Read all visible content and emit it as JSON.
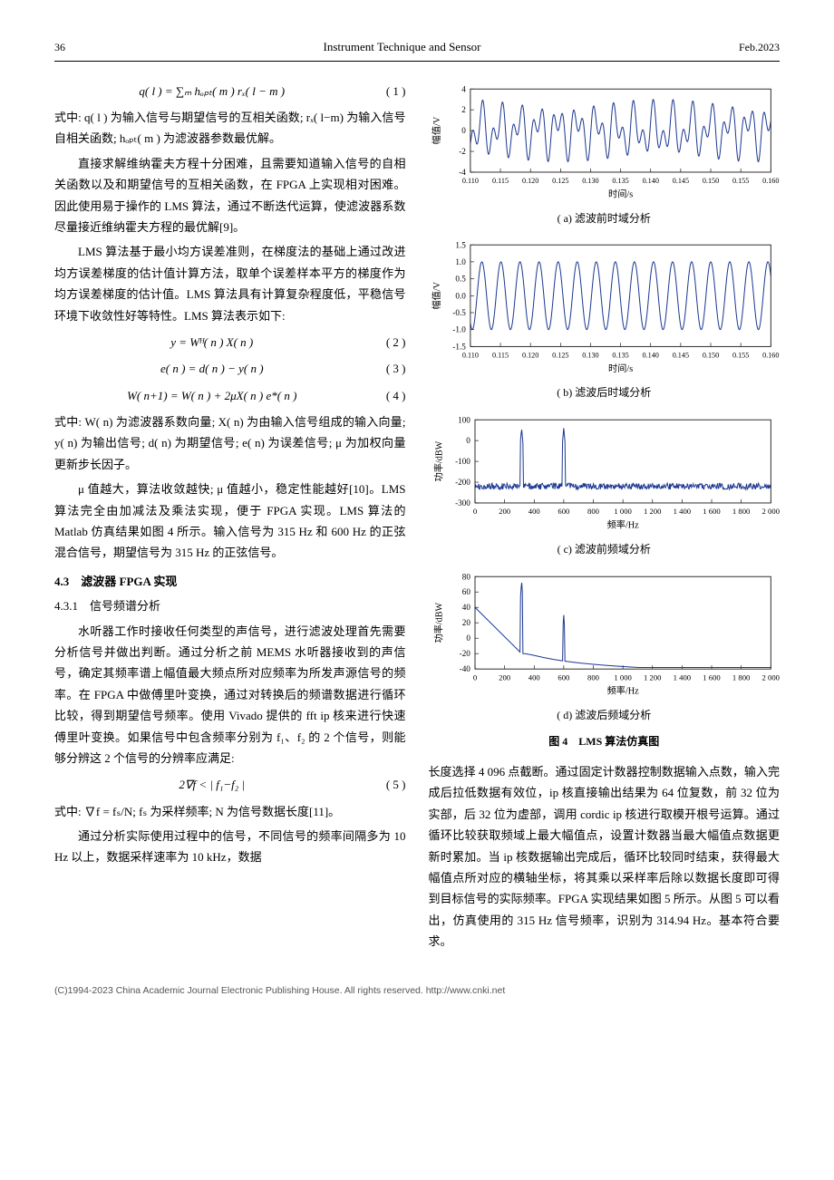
{
  "header": {
    "page": "36",
    "journal": "Instrument Technique and Sensor",
    "date": "Feb.2023"
  },
  "equations": {
    "eq1": "q( l ) = ∑ₘ hₒₚₜ( m ) rₓ( l − m )",
    "eq1_num": "( 1 )",
    "eq2": "y = Wᴴ( n ) X( n )",
    "eq2_num": "( 2 )",
    "eq3": "e( n ) = d( n ) − y( n )",
    "eq3_num": "( 3 )",
    "eq4": "W( n+1) = W( n ) + 2μX( n ) e*( n )",
    "eq4_num": "( 4 )",
    "eq5": "2∇f < | f₁−f₂ |",
    "eq5_num": "( 5 )"
  },
  "text": {
    "p1": "式中: q( l ) 为输入信号与期望信号的互相关函数; rₓ( l−m) 为输入信号自相关函数; hₒₚₜ( m ) 为滤波器参数最优解。",
    "p2": "直接求解维纳霍夫方程十分困难，且需要知道输入信号的自相关函数以及和期望信号的互相关函数，在 FPGA 上实现相对困难。因此使用易于操作的 LMS 算法，通过不断迭代运算，使滤波器系数尽量接近维纳霍夫方程的最优解[9]。",
    "p3": "LMS 算法基于最小均方误差准则，在梯度法的基础上通过改进均方误差梯度的估计值计算方法，取单个误差样本平方的梯度作为均方误差梯度的估计值。LMS 算法具有计算复杂程度低，平稳信号环境下收敛性好等特性。LMS 算法表示如下:",
    "p4": "式中: W( n) 为滤波器系数向量; X( n) 为由输入信号组成的输入向量; y( n) 为输出信号; d( n) 为期望信号; e( n) 为误差信号; μ 为加权向量更新步长因子。",
    "p5": "μ 值越大，算法收敛越快; μ 值越小，稳定性能越好[10]。LMS 算法完全由加减法及乘法实现，便于 FPGA 实现。LMS 算法的 Matlab 仿真结果如图 4 所示。输入信号为 315 Hz 和 600 Hz 的正弦混合信号，期望信号为 315 Hz 的正弦信号。",
    "s43": "4.3　滤波器 FPGA 实现",
    "s431": "4.3.1　信号频谱分析",
    "p6": "水听器工作时接收任何类型的声信号，进行滤波处理首先需要分析信号并做出判断。通过分析之前 MEMS 水听器接收到的声信号，确定其频率谱上幅值最大频点所对应频率为所发声源信号的频率。在 FPGA 中做傅里叶变换，通过对转换后的频谱数据进行循环比较，得到期望信号频率。使用 Vivado 提供的 fft ip 核来进行快速傅里叶变换。如果信号中包含频率分别为 f₁、f₂ 的 2 个信号，则能够分辨这 2 个信号的分辨率应满足:",
    "p7": "式中: ∇f = fₛ/N; fₛ 为采样频率; N 为信号数据长度[11]。",
    "p8": "通过分析实际使用过程中的信号，不同信号的频率间隔多为 10 Hz 以上，数据采样速率为 10 kHz，数据",
    "pR": "长度选择 4 096 点截断。通过固定计数器控制数据输入点数，输入完成后拉低数据有效位，ip 核直接输出结果为 64 位复数，前 32 位为实部，后 32 位为虚部，调用 cordic ip 核进行取模开根号运算。通过循环比较获取频域上最大幅值点，设置计数器当最大幅值点数据更新时累加。当 ip 核数据输出完成后，循环比较同时结束，获得最大幅值点所对应的横轴坐标，将其乘以采样率后除以数据长度即可得到目标信号的实际频率。FPGA 实现结果如图 5 所示。从图 5 可以看出，仿真使用的 315 Hz 信号频率，识别为 314.94 Hz。基本符合要求。"
  },
  "charts": {
    "a": {
      "caption": "( a) 滤波前时域分析",
      "xlabel": "时间/s",
      "ylabel": "幅值/V",
      "xlim": [
        0.11,
        0.16
      ],
      "ylim": [
        -4,
        4
      ],
      "xticks": [
        0.11,
        0.115,
        0.12,
        0.125,
        0.13,
        0.135,
        0.14,
        0.145,
        0.15,
        0.155,
        0.16
      ],
      "yticks": [
        -4,
        -2,
        0,
        2,
        4
      ],
      "line_color": "#1f3a93",
      "background": "#ffffff",
      "freq1": 315,
      "freq2": 600
    },
    "b": {
      "caption": "( b) 滤波后时域分析",
      "xlabel": "时间/s",
      "ylabel": "幅值/V",
      "xlim": [
        0.11,
        0.16
      ],
      "ylim": [
        -1.5,
        1.5
      ],
      "xticks": [
        0.11,
        0.115,
        0.12,
        0.125,
        0.13,
        0.135,
        0.14,
        0.145,
        0.15,
        0.155,
        0.16
      ],
      "yticks": [
        -1.5,
        -1.0,
        -0.5,
        0.0,
        0.5,
        1.0,
        1.5
      ],
      "line_color": "#1f3a93",
      "background": "#ffffff",
      "freq": 315
    },
    "c": {
      "caption": "( c) 滤波前频域分析",
      "xlabel": "频率/Hz",
      "ylabel": "功率/dBW",
      "xlim": [
        0,
        2000
      ],
      "ylim": [
        -300,
        100
      ],
      "xticks": [
        0,
        200,
        400,
        600,
        800,
        1000,
        1200,
        1400,
        1600,
        1800,
        2000
      ],
      "yticks": [
        -300,
        -200,
        -100,
        0,
        100
      ],
      "line_color": "#1f3a93",
      "background": "#ffffff",
      "peaks": [
        315,
        600
      ],
      "peak_val": 60,
      "noise_floor": -220
    },
    "d": {
      "caption": "( d) 滤波后频域分析",
      "xlabel": "频率/Hz",
      "ylabel": "功率/dBW",
      "xlim": [
        0,
        2000
      ],
      "ylim": [
        -40,
        80
      ],
      "xticks": [
        0,
        200,
        400,
        600,
        800,
        1000,
        1200,
        1400,
        1600,
        1800,
        2000
      ],
      "yticks": [
        -40,
        -20,
        0,
        20,
        40,
        60,
        80
      ],
      "line_color": "#1f3a93",
      "background": "#ffffff",
      "main_peak": 315,
      "main_peak_val": 75,
      "sec_peak": 600,
      "sec_peak_val": 30
    },
    "fig4_title": "图 4　LMS 算法仿真图"
  },
  "footer": "(C)1994-2023 China Academic Journal Electronic Publishing House. All rights reserved.    http://www.cnki.net"
}
